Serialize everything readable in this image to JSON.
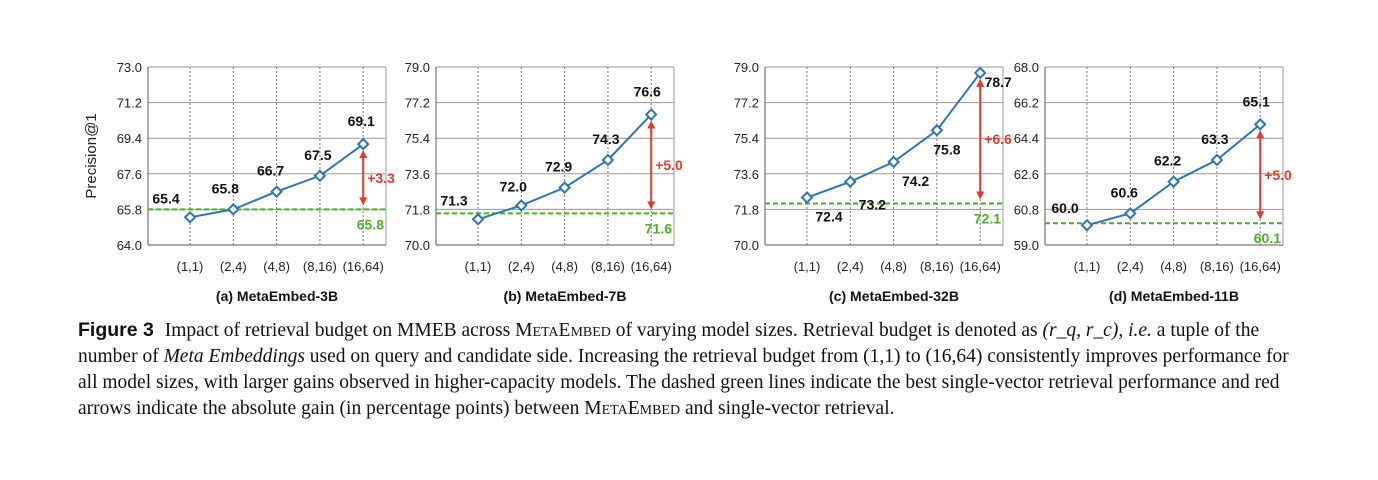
{
  "chart_data": [
    {
      "type": "line",
      "title": "(a) MetaEmbed-3B",
      "ylabel": "Precision@1",
      "categories": [
        "(1,1)",
        "(2,4)",
        "(4,8)",
        "(8,16)",
        "(16,64)"
      ],
      "values": [
        65.4,
        65.8,
        66.7,
        67.5,
        69.1
      ],
      "yticks": [
        "64.0",
        "65.8",
        "67.6",
        "69.4",
        "71.2",
        "73.0"
      ],
      "ylim": [
        64.0,
        73.0
      ],
      "baseline": 65.8,
      "baseline_label": "65.8",
      "gain_label": "+3.3",
      "grid": true
    },
    {
      "type": "line",
      "title": "(b) MetaEmbed-7B",
      "ylabel": "",
      "categories": [
        "(1,1)",
        "(2,4)",
        "(4,8)",
        "(8,16)",
        "(16,64)"
      ],
      "values": [
        71.3,
        72.0,
        72.9,
        74.3,
        76.6
      ],
      "yticks": [
        "70.0",
        "71.8",
        "73.6",
        "75.4",
        "77.2",
        "79.0"
      ],
      "ylim": [
        70.0,
        79.0
      ],
      "baseline": 71.6,
      "baseline_label": "71.6",
      "gain_label": "+5.0",
      "grid": true
    },
    {
      "type": "line",
      "title": "(c) MetaEmbed-32B",
      "ylabel": "",
      "categories": [
        "(1,1)",
        "(2,4)",
        "(4,8)",
        "(8,16)",
        "(16,64)"
      ],
      "values": [
        72.4,
        73.2,
        74.2,
        75.8,
        78.7
      ],
      "yticks": [
        "70.0",
        "71.8",
        "73.6",
        "75.4",
        "77.2",
        "79.0"
      ],
      "ylim": [
        70.0,
        79.0
      ],
      "baseline": 72.1,
      "baseline_label": "72.1",
      "gain_label": "+6.6",
      "grid": true
    },
    {
      "type": "line",
      "title": "(d) MetaEmbed-11B",
      "ylabel": "",
      "categories": [
        "(1,1)",
        "(2,4)",
        "(4,8)",
        "(8,16)",
        "(16,64)"
      ],
      "values": [
        60.0,
        60.6,
        62.2,
        63.3,
        65.1
      ],
      "yticks": [
        "59.0",
        "60.8",
        "62.6",
        "64.4",
        "66.2",
        "68.0"
      ],
      "ylim": [
        59.0,
        68.0
      ],
      "baseline": 60.1,
      "baseline_label": "60.1",
      "gain_label": "+5.0",
      "grid": true
    }
  ],
  "colors": {
    "line": "#2e75b6",
    "baseline": "#4caf2a",
    "gain": "#e03c2c"
  },
  "caption": {
    "label": "Figure 3",
    "p1": "Impact of retrieval budget on MMEB across",
    "metaembed": "MetaEmbed",
    "p2": "of varying model sizes. Retrieval budget is denoted as",
    "tuple": "(r_q, r_c)",
    "ie": "i.e.",
    "p3": "a tuple of the number of",
    "meta_emb": "Meta Embeddings",
    "p4": "used on query and candidate side. Increasing the retrieval budget from (1,1) to (16,64) consistently improves performance for all model sizes, with larger gains observed in higher-capacity models. The dashed green lines indicate the best single-vector retrieval performance and red arrows indicate the absolute gain (in percentage points) between",
    "metaembed2": "MetaEmbed",
    "p5": "and single-vector retrieval."
  }
}
